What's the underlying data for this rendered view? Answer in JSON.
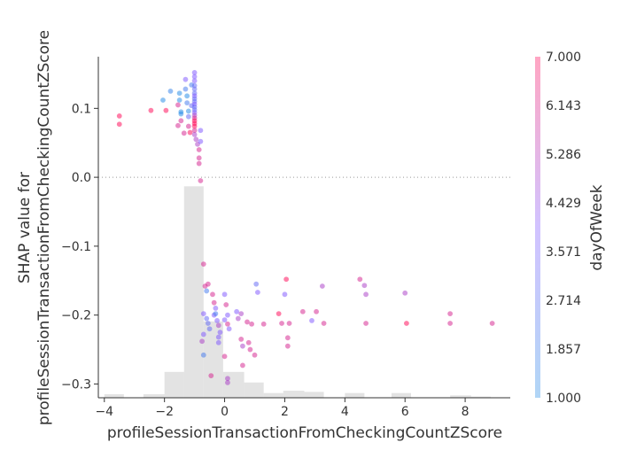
{
  "chart_data": {
    "type": "scatter",
    "xlabel": "profileSessionTransactionFromCheckingCountZScore",
    "ylabel_lines": [
      "SHAP value for",
      "profileSessionTransactionFromCheckingCountZScore"
    ],
    "xlim": [
      -4.2,
      9.5
    ],
    "ylim": [
      -0.32,
      0.175
    ],
    "x_ticks": [
      -4,
      -2,
      0,
      2,
      4,
      6,
      8
    ],
    "y_ticks": [
      0.1,
      0.0,
      -0.1,
      -0.2,
      -0.3
    ],
    "x_tick_labels": [
      "−4",
      "−2",
      "0",
      "2",
      "4",
      "6",
      "8"
    ],
    "y_tick_labels": [
      "0.1",
      "0.0",
      "−0.1",
      "−0.2",
      "−0.3"
    ],
    "zero_line": true,
    "histogram": {
      "color": "#cccccc",
      "bins": [
        {
          "x0": -4.0,
          "x1": -3.35,
          "count": 3
        },
        {
          "x0": -2.7,
          "x1": -2.0,
          "count": 3
        },
        {
          "x0": -2.0,
          "x1": -1.35,
          "count": 22
        },
        {
          "x0": -1.35,
          "x1": -0.7,
          "count": 180
        },
        {
          "x0": -0.7,
          "x1": -0.05,
          "count": 65
        },
        {
          "x0": -0.05,
          "x1": 0.65,
          "count": 22
        },
        {
          "x0": 0.65,
          "x1": 1.3,
          "count": 13
        },
        {
          "x0": 1.3,
          "x1": 1.95,
          "count": 4
        },
        {
          "x0": 1.95,
          "x1": 2.65,
          "count": 6
        },
        {
          "x0": 2.65,
          "x1": 3.3,
          "count": 5
        },
        {
          "x0": 4.0,
          "x1": 4.65,
          "count": 4
        },
        {
          "x0": 5.55,
          "x1": 6.2,
          "count": 4
        },
        {
          "x0": 7.5,
          "x1": 8.2,
          "count": 2
        },
        {
          "x0": 8.2,
          "x1": 8.85,
          "count": 1
        }
      ]
    },
    "colorbar": {
      "label": "dayOfWeek",
      "min": 1.0,
      "max": 7.0,
      "tick_labels": [
        "7.000",
        "6.143",
        "5.286",
        "4.429",
        "3.571",
        "2.714",
        "1.857",
        "1.000"
      ],
      "colors": [
        "#1E88E5",
        "#7C52FF",
        "#FF0052"
      ]
    },
    "points": [
      {
        "x": -3.5,
        "y": 0.089,
        "c": 7
      },
      {
        "x": -3.5,
        "y": 0.077,
        "c": 7
      },
      {
        "x": -2.45,
        "y": 0.097,
        "c": 7
      },
      {
        "x": -1.95,
        "y": 0.097,
        "c": 7
      },
      {
        "x": -2.05,
        "y": 0.112,
        "c": 1
      },
      {
        "x": -1.8,
        "y": 0.125,
        "c": 1.5
      },
      {
        "x": -1.5,
        "y": 0.122,
        "c": 1
      },
      {
        "x": -1.5,
        "y": 0.112,
        "c": 1
      },
      {
        "x": -1.45,
        "y": 0.095,
        "c": 1
      },
      {
        "x": -1.45,
        "y": 0.092,
        "c": 1
      },
      {
        "x": -1.55,
        "y": 0.105,
        "c": 6
      },
      {
        "x": -1.55,
        "y": 0.075,
        "c": 6
      },
      {
        "x": -1.45,
        "y": 0.082,
        "c": 6
      },
      {
        "x": -1.35,
        "y": 0.064,
        "c": 6
      },
      {
        "x": -1.3,
        "y": 0.142,
        "c": 4
      },
      {
        "x": -1.3,
        "y": 0.128,
        "c": 2
      },
      {
        "x": -1.25,
        "y": 0.118,
        "c": 1
      },
      {
        "x": -1.25,
        "y": 0.108,
        "c": 2
      },
      {
        "x": -1.2,
        "y": 0.096,
        "c": 1
      },
      {
        "x": -1.2,
        "y": 0.088,
        "c": 3
      },
      {
        "x": -1.2,
        "y": 0.074,
        "c": 6
      },
      {
        "x": -1.15,
        "y": 0.065,
        "c": 7
      },
      {
        "x": -1.1,
        "y": 0.134,
        "c": 2
      },
      {
        "x": -1.1,
        "y": 0.104,
        "c": 3
      },
      {
        "x": -1.0,
        "y": 0.152,
        "c": 4
      },
      {
        "x": -1.0,
        "y": 0.146,
        "c": 4
      },
      {
        "x": -1.0,
        "y": 0.14,
        "c": 4
      },
      {
        "x": -1.0,
        "y": 0.133,
        "c": 3
      },
      {
        "x": -1.0,
        "y": 0.128,
        "c": 3
      },
      {
        "x": -1.0,
        "y": 0.122,
        "c": 3
      },
      {
        "x": -1.0,
        "y": 0.118,
        "c": 4
      },
      {
        "x": -1.0,
        "y": 0.114,
        "c": 3
      },
      {
        "x": -1.0,
        "y": 0.11,
        "c": 3
      },
      {
        "x": -1.0,
        "y": 0.106,
        "c": 4
      },
      {
        "x": -1.0,
        "y": 0.102,
        "c": 3
      },
      {
        "x": -1.0,
        "y": 0.098,
        "c": 3
      },
      {
        "x": -1.0,
        "y": 0.094,
        "c": 4
      },
      {
        "x": -1.0,
        "y": 0.09,
        "c": 5
      },
      {
        "x": -1.0,
        "y": 0.086,
        "c": 6
      },
      {
        "x": -1.0,
        "y": 0.082,
        "c": 7
      },
      {
        "x": -1.0,
        "y": 0.078,
        "c": 7
      },
      {
        "x": -1.0,
        "y": 0.074,
        "c": 7
      },
      {
        "x": -1.0,
        "y": 0.068,
        "c": 6
      },
      {
        "x": -1.0,
        "y": 0.062,
        "c": 5
      },
      {
        "x": -0.95,
        "y": 0.055,
        "c": 5
      },
      {
        "x": -0.9,
        "y": 0.048,
        "c": 5
      },
      {
        "x": -0.85,
        "y": 0.04,
        "c": 6
      },
      {
        "x": -0.85,
        "y": 0.028,
        "c": 6
      },
      {
        "x": -0.8,
        "y": 0.068,
        "c": 4
      },
      {
        "x": -0.8,
        "y": 0.052,
        "c": 4
      },
      {
        "x": -0.85,
        "y": 0.02,
        "c": 6
      },
      {
        "x": -0.8,
        "y": -0.005,
        "c": 6
      },
      {
        "x": -0.7,
        "y": -0.126,
        "c": 6
      },
      {
        "x": -0.65,
        "y": -0.158,
        "c": 6
      },
      {
        "x": -0.6,
        "y": -0.165,
        "c": 2
      },
      {
        "x": -0.55,
        "y": -0.155,
        "c": 6
      },
      {
        "x": -0.4,
        "y": -0.17,
        "c": 6
      },
      {
        "x": -0.35,
        "y": -0.182,
        "c": 6
      },
      {
        "x": -0.3,
        "y": -0.19,
        "c": 4
      },
      {
        "x": -0.7,
        "y": -0.198,
        "c": 4
      },
      {
        "x": -0.6,
        "y": -0.205,
        "c": 3
      },
      {
        "x": -0.55,
        "y": -0.212,
        "c": 3
      },
      {
        "x": -0.5,
        "y": -0.22,
        "c": 3
      },
      {
        "x": -0.7,
        "y": -0.228,
        "c": 4
      },
      {
        "x": -0.75,
        "y": -0.238,
        "c": 5
      },
      {
        "x": -0.7,
        "y": -0.258,
        "c": 2
      },
      {
        "x": -0.35,
        "y": -0.2,
        "c": 4
      },
      {
        "x": -0.25,
        "y": -0.208,
        "c": 4
      },
      {
        "x": -0.2,
        "y": -0.215,
        "c": 5
      },
      {
        "x": -0.15,
        "y": -0.225,
        "c": 4
      },
      {
        "x": -0.2,
        "y": -0.232,
        "c": 4
      },
      {
        "x": -0.2,
        "y": -0.24,
        "c": 4
      },
      {
        "x": -0.3,
        "y": -0.198,
        "c": 2
      },
      {
        "x": -0.45,
        "y": -0.288,
        "c": 6
      },
      {
        "x": 0.0,
        "y": -0.17,
        "c": 4
      },
      {
        "x": 0.05,
        "y": -0.185,
        "c": 6
      },
      {
        "x": 0.1,
        "y": -0.2,
        "c": 4
      },
      {
        "x": 0.0,
        "y": -0.207,
        "c": 4
      },
      {
        "x": 0.1,
        "y": -0.213,
        "c": 6
      },
      {
        "x": 0.15,
        "y": -0.22,
        "c": 4
      },
      {
        "x": 0.0,
        "y": -0.26,
        "c": 6
      },
      {
        "x": 0.1,
        "y": -0.292,
        "c": 5
      },
      {
        "x": 0.1,
        "y": -0.298,
        "c": 5
      },
      {
        "x": 0.4,
        "y": -0.195,
        "c": 4
      },
      {
        "x": 0.45,
        "y": -0.205,
        "c": 5
      },
      {
        "x": 0.55,
        "y": -0.198,
        "c": 5
      },
      {
        "x": 0.55,
        "y": -0.235,
        "c": 6
      },
      {
        "x": 0.6,
        "y": -0.245,
        "c": 5
      },
      {
        "x": 0.6,
        "y": -0.273,
        "c": 6
      },
      {
        "x": 0.75,
        "y": -0.21,
        "c": 6
      },
      {
        "x": 0.8,
        "y": -0.24,
        "c": 6
      },
      {
        "x": 0.85,
        "y": -0.25,
        "c": 6
      },
      {
        "x": 0.9,
        "y": -0.213,
        "c": 6
      },
      {
        "x": 1.0,
        "y": -0.258,
        "c": 6
      },
      {
        "x": 1.05,
        "y": -0.155,
        "c": 3
      },
      {
        "x": 1.1,
        "y": -0.167,
        "c": 4
      },
      {
        "x": 1.3,
        "y": -0.213,
        "c": 6
      },
      {
        "x": 1.8,
        "y": -0.198,
        "c": 7
      },
      {
        "x": 1.9,
        "y": -0.212,
        "c": 6
      },
      {
        "x": 2.0,
        "y": -0.17,
        "c": 4
      },
      {
        "x": 2.05,
        "y": -0.148,
        "c": 7
      },
      {
        "x": 2.1,
        "y": -0.233,
        "c": 6
      },
      {
        "x": 2.1,
        "y": -0.245,
        "c": 6
      },
      {
        "x": 2.15,
        "y": -0.212,
        "c": 6
      },
      {
        "x": 2.6,
        "y": -0.195,
        "c": 6
      },
      {
        "x": 2.9,
        "y": -0.208,
        "c": 4
      },
      {
        "x": 3.05,
        "y": -0.195,
        "c": 6
      },
      {
        "x": 3.25,
        "y": -0.158,
        "c": 5
      },
      {
        "x": 3.3,
        "y": -0.212,
        "c": 6
      },
      {
        "x": 4.5,
        "y": -0.148,
        "c": 6
      },
      {
        "x": 4.65,
        "y": -0.157,
        "c": 5
      },
      {
        "x": 4.7,
        "y": -0.17,
        "c": 5
      },
      {
        "x": 4.7,
        "y": -0.212,
        "c": 6
      },
      {
        "x": 6.0,
        "y": -0.168,
        "c": 5
      },
      {
        "x": 6.05,
        "y": -0.212,
        "c": 7
      },
      {
        "x": 7.5,
        "y": -0.198,
        "c": 6
      },
      {
        "x": 7.5,
        "y": -0.212,
        "c": 6
      },
      {
        "x": 8.9,
        "y": -0.212,
        "c": 6
      }
    ]
  }
}
